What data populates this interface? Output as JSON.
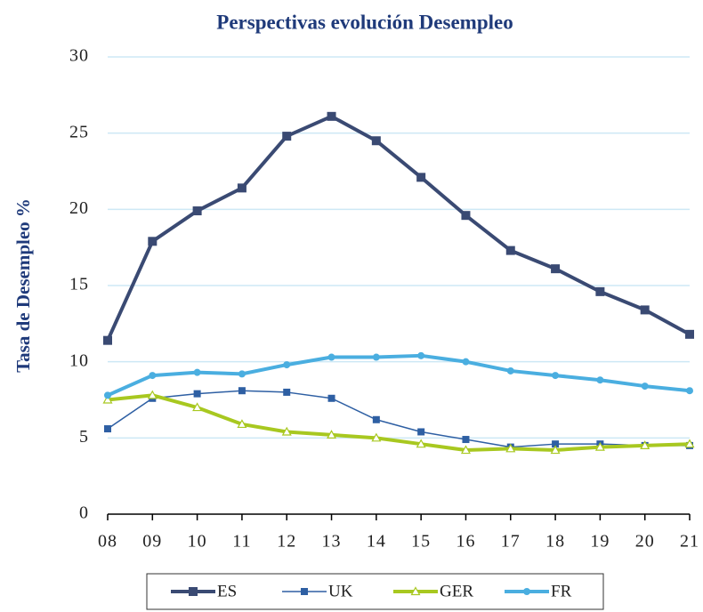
{
  "chart_data": {
    "type": "line",
    "title": "Perspectivas evolución Desempleo",
    "ylabel": "Tasa de Desempleo %",
    "categories": [
      "08",
      "09",
      "10",
      "11",
      "12",
      "13",
      "14",
      "15",
      "16",
      "17",
      "18",
      "19",
      "20",
      "21"
    ],
    "series": [
      {
        "name": "ES",
        "color": "#3a4a73",
        "marker": "square",
        "values": [
          11.4,
          17.9,
          19.9,
          21.4,
          24.8,
          26.1,
          24.5,
          22.1,
          19.6,
          17.3,
          16.1,
          14.6,
          13.4,
          11.8
        ]
      },
      {
        "name": "UK",
        "color": "#2e5fa3",
        "marker": "square",
        "values": [
          5.6,
          7.6,
          7.9,
          8.1,
          8.0,
          7.6,
          6.2,
          5.4,
          4.9,
          4.4,
          4.6,
          4.6,
          4.5,
          4.5
        ]
      },
      {
        "name": "GER",
        "color": "#a8c820",
        "marker": "triangle",
        "values": [
          7.5,
          7.8,
          7.0,
          5.9,
          5.4,
          5.2,
          5.0,
          4.6,
          4.2,
          4.3,
          4.2,
          4.4,
          4.5,
          4.6
        ]
      },
      {
        "name": "FR",
        "color": "#4aaee0",
        "marker": "circle",
        "values": [
          7.8,
          9.1,
          9.3,
          9.2,
          9.8,
          10.3,
          10.3,
          10.4,
          10.0,
          9.4,
          9.1,
          8.8,
          8.4,
          8.1
        ]
      }
    ],
    "ylim": [
      0,
      30
    ],
    "yticks": [
      0,
      5,
      10,
      15,
      20,
      25,
      30
    ],
    "grid": true,
    "legend": "bottom"
  }
}
